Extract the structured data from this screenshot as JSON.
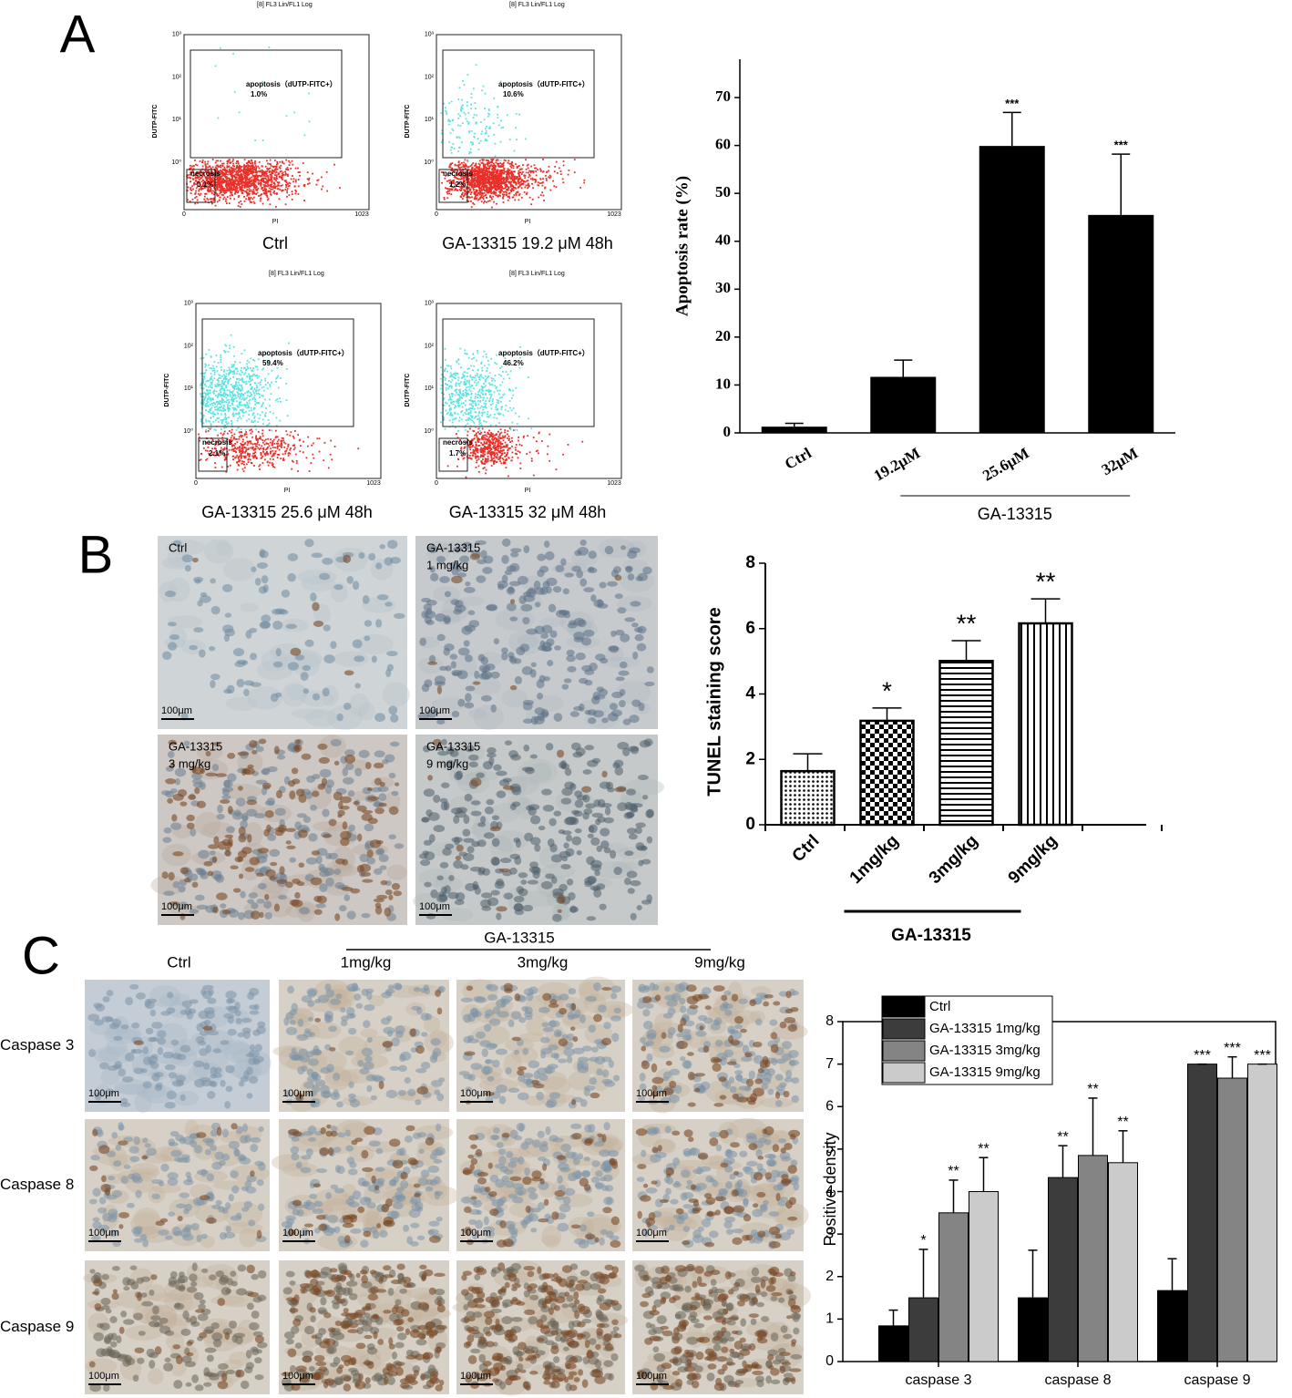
{
  "figure": {
    "panel_labels": [
      "A",
      "B",
      "C"
    ],
    "flow_cytometry": {
      "header": "[8] FL3 Lin/FL1 Log",
      "y_label": "DUTP-FITC",
      "x_label": "PI",
      "y_ticks": [
        "10⁰",
        "10¹",
        "10²",
        "10³"
      ],
      "x_ticks": [
        "0",
        "1023"
      ],
      "apoptosis_gate": "apoptosis（dUTP-FITC+）",
      "necrosis_gate": "necrosis",
      "plots": [
        {
          "caption": "Ctrl",
          "apoptosis": "1.0%",
          "necrosis": "0.1%"
        },
        {
          "caption": "GA-13315 19.2 μM  48h",
          "apoptosis": "10.6%",
          "necrosis": "1.2%"
        },
        {
          "caption": "GA-13315 25.6 μM  48h",
          "apoptosis": "59.4%",
          "necrosis": "2.1%"
        },
        {
          "caption": "GA-13315 32 μM  48h",
          "apoptosis": "46.2%",
          "necrosis": "1.7%"
        }
      ]
    },
    "tunel_images": {
      "labels": [
        {
          "name": "Ctrl"
        },
        {
          "name": "GA-13315",
          "dose": "1 mg/kg"
        },
        {
          "name": "GA-13315",
          "dose": "3 mg/kg"
        },
        {
          "name": "GA-13315",
          "dose": "9 mg/kg"
        }
      ],
      "scale_bar": "100μm"
    },
    "caspase_images": {
      "group": "GA-13315",
      "columns": [
        "Ctrl",
        "1mg/kg",
        "3mg/kg",
        "9mg/kg"
      ],
      "rows": [
        "Caspase 3",
        "Caspase 8",
        "Caspase 9"
      ],
      "scale_bar": "100μm"
    }
  },
  "chart_data": [
    {
      "type": "bar",
      "y_label": "Apoptosis rate (%)",
      "categories": [
        "Ctrl",
        "19.2μM",
        "25.6μM",
        "32μM"
      ],
      "values": [
        1.3,
        11.7,
        59.9,
        45.5
      ],
      "errors": [
        0.7,
        3.5,
        7.0,
        12.7
      ],
      "significance": [
        null,
        null,
        "***",
        "***"
      ],
      "color": "#000000",
      "group_label": "GA-13315",
      "ylim": [
        0,
        78
      ],
      "yticks": [
        0,
        10,
        20,
        30,
        40,
        50,
        60,
        70
      ]
    },
    {
      "type": "bar",
      "y_label": "TUNEL staining score",
      "categories": [
        "Ctrl",
        "1mg/kg",
        "3mg/kg",
        "9mg/kg"
      ],
      "values": [
        1.64,
        3.18,
        5.01,
        6.16
      ],
      "errors": [
        0.53,
        0.39,
        0.62,
        0.75
      ],
      "significance": [
        null,
        "*",
        "**",
        "**"
      ],
      "color": "#000000",
      "patterns": [
        "dots",
        "checker",
        "hlines",
        "vlines"
      ],
      "group_label": "GA-13315",
      "ylim": [
        0,
        8
      ],
      "yticks": [
        0,
        2,
        4,
        6,
        8
      ]
    },
    {
      "type": "bar",
      "y_label": "Positive density",
      "categories": [
        "caspase 3",
        "caspase 8",
        "caspase 9"
      ],
      "series": [
        {
          "name": "Ctrl",
          "color": "#000000",
          "values": [
            0.84,
            1.5,
            1.67
          ],
          "errors": [
            0.37,
            1.12,
            0.75
          ],
          "significance": [
            null,
            null,
            null
          ]
        },
        {
          "name": "GA-13315 1mg/kg",
          "color": "#3c3c3c",
          "values": [
            1.5,
            4.33,
            7.0
          ],
          "errors": [
            1.14,
            0.75,
            0
          ],
          "significance": [
            "*",
            "**",
            "***"
          ]
        },
        {
          "name": "GA-13315 3mg/kg",
          "color": "#848484",
          "values": [
            3.5,
            4.85,
            6.67
          ],
          "errors": [
            0.77,
            1.35,
            0.5
          ],
          "significance": [
            "**",
            "**",
            "***"
          ]
        },
        {
          "name": "GA-13315 9mg/kg",
          "color": "#cbcbcb",
          "values": [
            4.0,
            4.68,
            7.0
          ],
          "errors": [
            0.8,
            0.75,
            0
          ],
          "significance": [
            "**",
            "**",
            "***"
          ]
        }
      ],
      "legend": "upper left",
      "ylim": [
        0,
        8
      ],
      "yticks": [
        0,
        1,
        2,
        3,
        4,
        5,
        6,
        7,
        8
      ]
    }
  ]
}
